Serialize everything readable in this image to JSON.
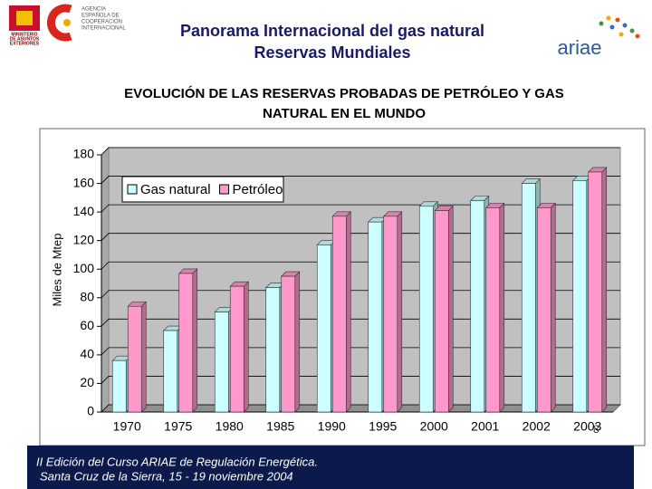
{
  "header": {
    "title_lines": [
      "Panorama Internacional del gas natural",
      "Reservas Mundiales"
    ],
    "ministry_lines": [
      "MINISTERIO",
      "DE ASUNTOS",
      "EXTERIORES"
    ],
    "agency_lines": [
      "AGENCIA",
      "ESPAÑOLA DE",
      "COOPERACIÓN",
      "INTERNACIONAL"
    ],
    "brand": "ariae"
  },
  "chart_data": {
    "type": "bar",
    "title_lines": [
      "EVOLUCIÓN DE LAS RESERVAS PROBADAS DE PETRÓLEO Y GAS",
      "NATURAL EN EL MUNDO"
    ],
    "y_label": "Miles de Mtep",
    "categories": [
      "1970",
      "1975",
      "1980",
      "1985",
      "1990",
      "1995",
      "2000",
      "2001",
      "2002",
      "2003"
    ],
    "series": [
      {
        "name": "Gas natural",
        "color": "#ccffff",
        "values": [
          36,
          57,
          70,
          87,
          117,
          133,
          144,
          148,
          160,
          162
        ]
      },
      {
        "name": "Petróleo",
        "color": "#ff99cc",
        "values": [
          74,
          97,
          88,
          95,
          137,
          137,
          141,
          143,
          143,
          168
        ]
      }
    ],
    "ylim": [
      0,
      180
    ],
    "yticks": [
      0,
      20,
      40,
      60,
      80,
      100,
      120,
      140,
      160,
      180
    ],
    "grid": true,
    "legend": "top-left"
  },
  "footer": {
    "lines": [
      "II Edición del Curso ARIAE de Regulación Energética.",
      "Santa Cruz de la Sierra, 15 - 19 noviembre 2004"
    ],
    "page": "8"
  }
}
